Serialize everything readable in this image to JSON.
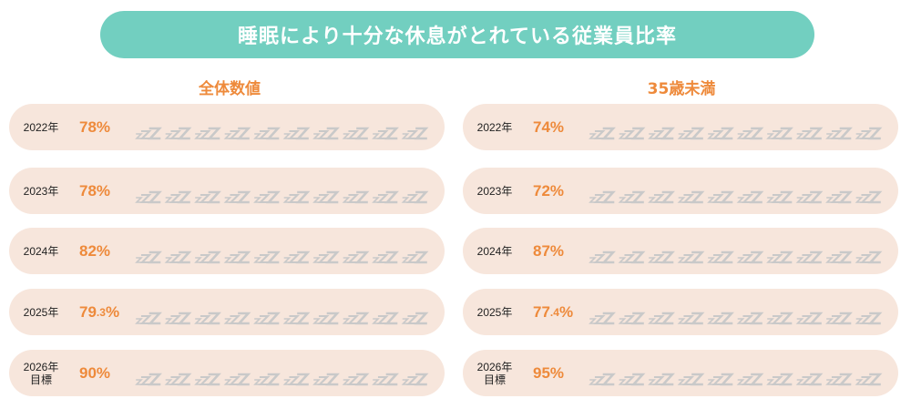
{
  "title": "睡眠により十分な休息がとれている従業員比率",
  "colors": {
    "filled": "#2ea5e0",
    "target": "#5ec6ea",
    "empty": "#c9c9c9",
    "pill": "#72cfc0",
    "accent": "#ee8a3b",
    "row": "#f7e6dc"
  },
  "icon": "zzz-sleep-icon",
  "chart_data": [
    {
      "type": "bar",
      "title": "全体数値",
      "icons_total": 10,
      "rows": [
        {
          "year": "2022年",
          "pct_main": "78",
          "pct_dec": "",
          "value": 78,
          "target": false
        },
        {
          "year": "2023年",
          "pct_main": "78",
          "pct_dec": "",
          "value": 78,
          "target": false
        },
        {
          "year": "2024年",
          "pct_main": "82",
          "pct_dec": "",
          "value": 82,
          "target": false
        },
        {
          "year": "2025年",
          "pct_main": "79",
          "pct_dec": ".3",
          "value": 79.3,
          "target": false
        },
        {
          "year": "2026年",
          "year2": "目標",
          "pct_main": "90",
          "pct_dec": "",
          "value": 90,
          "target": true
        }
      ]
    },
    {
      "type": "bar",
      "title": "35歳未満",
      "icons_total": 10,
      "rows": [
        {
          "year": "2022年",
          "pct_main": "74",
          "pct_dec": "",
          "value": 74,
          "target": false
        },
        {
          "year": "2023年",
          "pct_main": "72",
          "pct_dec": "",
          "value": 72,
          "target": false
        },
        {
          "year": "2024年",
          "pct_main": "87",
          "pct_dec": "",
          "value": 87,
          "target": false
        },
        {
          "year": "2025年",
          "pct_main": "77",
          "pct_dec": ".4",
          "value": 77.4,
          "target": false
        },
        {
          "year": "2026年",
          "year2": "目標",
          "pct_main": "95",
          "pct_dec": "",
          "value": 95,
          "target": true
        }
      ]
    }
  ]
}
